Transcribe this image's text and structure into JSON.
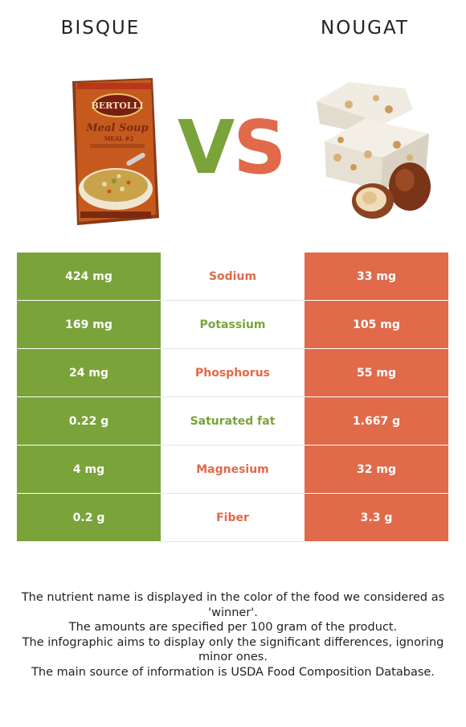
{
  "foods": {
    "left": {
      "name": "BISQUE",
      "color": "#7aa33a"
    },
    "right": {
      "name": "NOUGAT",
      "color": "#e06a4a"
    }
  },
  "vs": {
    "v": "V",
    "s": "S"
  },
  "soup_box": {
    "brand": "BERTOLLI",
    "line1": "Meal Soup",
    "line2": "MEAL #2"
  },
  "rows": [
    {
      "nutrient": "Sodium",
      "left": "424 mg",
      "right": "33 mg",
      "winner": "right"
    },
    {
      "nutrient": "Potassium",
      "left": "169 mg",
      "right": "105 mg",
      "winner": "left"
    },
    {
      "nutrient": "Phosphorus",
      "left": "24 mg",
      "right": "55 mg",
      "winner": "right"
    },
    {
      "nutrient": "Saturated fat",
      "left": "0.22 g",
      "right": "1.667 g",
      "winner": "left"
    },
    {
      "nutrient": "Magnesium",
      "left": "4 mg",
      "right": "32 mg",
      "winner": "right"
    },
    {
      "nutrient": "Fiber",
      "left": "0.2 g",
      "right": "3.3 g",
      "winner": "right"
    }
  ],
  "notes": [
    "The nutrient name is displayed in the color of the food we considered as 'winner'.",
    "The amounts are specified per 100 gram of the product.",
    "The infographic aims to display only the significant differences, ignoring minor ones.",
    "The main source of information is USDA Food Composition Database."
  ]
}
